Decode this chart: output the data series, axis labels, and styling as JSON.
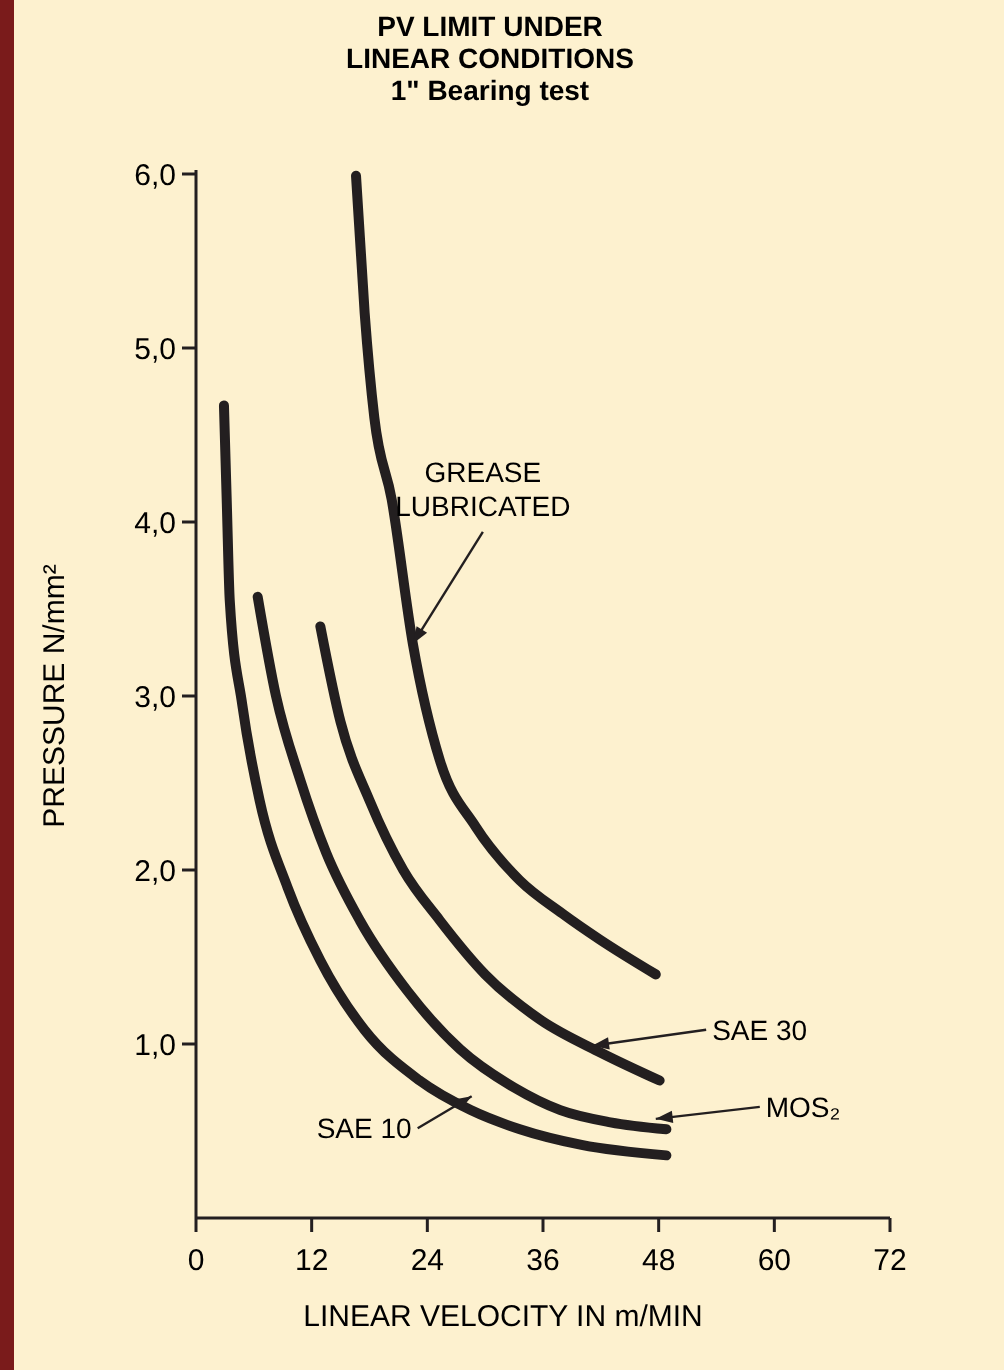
{
  "chart_data": {
    "type": "line",
    "title": "PV LIMIT UNDER\nLINEAR CONDITIONS",
    "subtitle": "1\" Bearing test",
    "xlabel": "LINEAR VELOCITY IN m/MIN",
    "ylabel": "PRESSURE N/mm²",
    "xlim": [
      0,
      72
    ],
    "xticks": [
      0,
      12,
      24,
      36,
      48,
      60,
      72
    ],
    "ylim": [
      0,
      6
    ],
    "yticks": [
      {
        "value": 1,
        "label": "1,0"
      },
      {
        "value": 2,
        "label": "2,0"
      },
      {
        "value": 3,
        "label": "3,0"
      },
      {
        "value": 4,
        "label": "4,0"
      },
      {
        "value": 5,
        "label": "5,0"
      },
      {
        "value": 6,
        "label": "6,0"
      }
    ],
    "grid": false,
    "line_style": "solid",
    "series": [
      {
        "color": "#231f20",
        "x": [
          16.6,
          17.5,
          18.5,
          20.3,
          22.5,
          25.3,
          29,
          33.6,
          38,
          41.9,
          47.7
        ],
        "values": [
          5.99,
          5.2,
          4.6,
          4.13,
          3.3,
          2.63,
          2.25,
          1.94,
          1.75,
          1.6,
          1.4
        ]
      },
      {
        "color": "#231f20",
        "x": [
          12.9,
          15,
          18,
          21.5,
          25.3,
          30,
          35.7,
          42,
          48.1
        ],
        "values": [
          3.4,
          2.85,
          2.4,
          2.0,
          1.71,
          1.4,
          1.14,
          0.95,
          0.79
        ]
      },
      {
        "color": "#231f20",
        "x": [
          6.4,
          8.3,
          10.8,
          13.5,
          17,
          22,
          27.4,
          33,
          37.8,
          43,
          48.8
        ],
        "values": [
          3.57,
          3.0,
          2.52,
          2.1,
          1.71,
          1.3,
          0.97,
          0.75,
          0.62,
          0.55,
          0.51
        ]
      },
      {
        "color": "#231f20",
        "x": [
          2.9,
          3.2,
          3.5,
          4.8,
          6.6,
          9.5,
          12.9,
          17.5,
          23.2,
          28.5,
          33.6,
          40,
          48.8
        ],
        "values": [
          4.67,
          4.1,
          3.55,
          2.95,
          2.4,
          1.9,
          1.48,
          1.08,
          0.79,
          0.62,
          0.51,
          0.42,
          0.36
        ]
      }
    ],
    "annotations": [
      {
        "text": "GREASE\nLUBRICATED",
        "x": 22.5,
        "y": 3.3
      },
      {
        "text": "SAE 30",
        "x": 41.1,
        "y": 0.99
      },
      {
        "text": "MOS₂",
        "x": 47.7,
        "y": 0.57
      },
      {
        "text": "SAE 10",
        "x": 28.6,
        "y": 0.7
      }
    ]
  }
}
